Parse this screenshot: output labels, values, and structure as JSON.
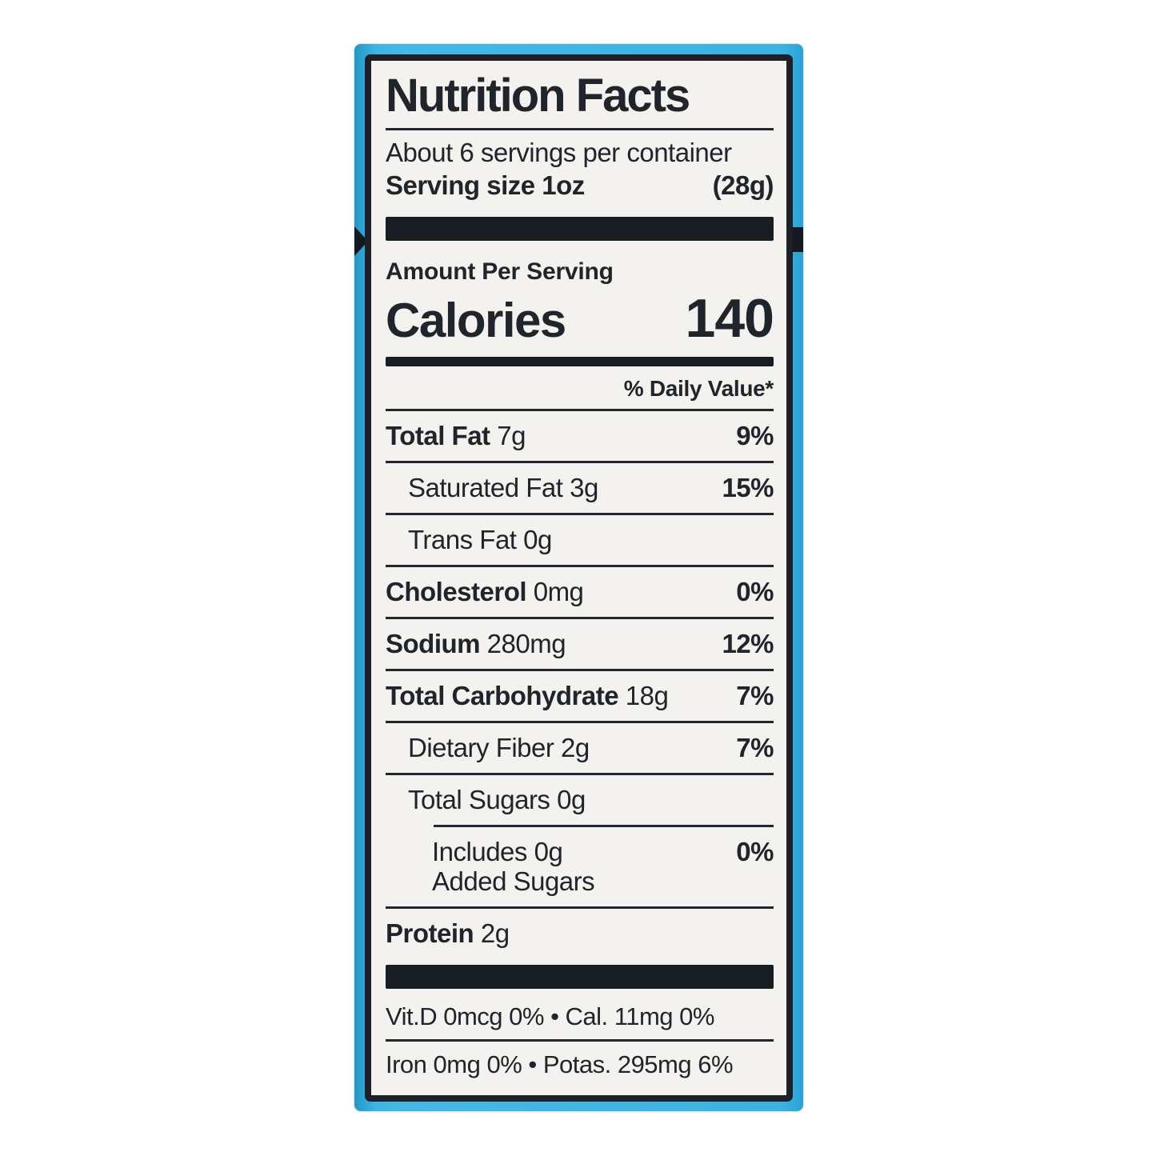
{
  "package": {
    "color": "#3cb2e2",
    "band_color": "#14181f"
  },
  "label": {
    "background": "#f3f2ee",
    "ink_color": "#20242b",
    "title": "Nutrition Facts",
    "servings_line": "About 6 servings per container",
    "serving_size_label": "Serving size 1oz",
    "serving_size_weight": "(28g)",
    "amount_per_serving": "Amount Per Serving",
    "calories": {
      "label": "Calories",
      "value": "140"
    },
    "daily_value_header": "% Daily Value*",
    "nutrients": [
      {
        "name": "Total Fat",
        "amount": "7g",
        "dv": "9%",
        "bold": true,
        "indent": 0
      },
      {
        "name": "Saturated Fat",
        "amount": "3g",
        "dv": "15%",
        "bold": false,
        "indent": 1
      },
      {
        "name": "Trans Fat",
        "amount": "0g",
        "dv": "",
        "bold": false,
        "indent": 1
      },
      {
        "name": "Cholesterol",
        "amount": "0mg",
        "dv": "0%",
        "bold": true,
        "indent": 0
      },
      {
        "name": "Sodium",
        "amount": "280mg",
        "dv": "12%",
        "bold": true,
        "indent": 0
      },
      {
        "name": "Total Carbohydrate",
        "amount": "18g",
        "dv": "7%",
        "bold": true,
        "indent": 0
      },
      {
        "name": "Dietary Fiber",
        "amount": "2g",
        "dv": "7%",
        "bold": false,
        "indent": 1
      },
      {
        "name": "Total Sugars",
        "amount": "0g",
        "dv": "",
        "bold": false,
        "indent": 1,
        "rule_after_indented": true
      },
      {
        "name": "Includes",
        "amount": "0g",
        "dv": "0%",
        "bold": false,
        "indent": 2,
        "second_line": "Added Sugars"
      },
      {
        "name": "Protein",
        "amount": "2g",
        "dv": "",
        "bold": true,
        "indent": 0,
        "last": true
      }
    ],
    "micronutrient_lines": [
      "Vit.D 0mcg 0% • Cal. 11mg 0%",
      "Iron 0mg 0% • Potas. 295mg 6%"
    ]
  }
}
